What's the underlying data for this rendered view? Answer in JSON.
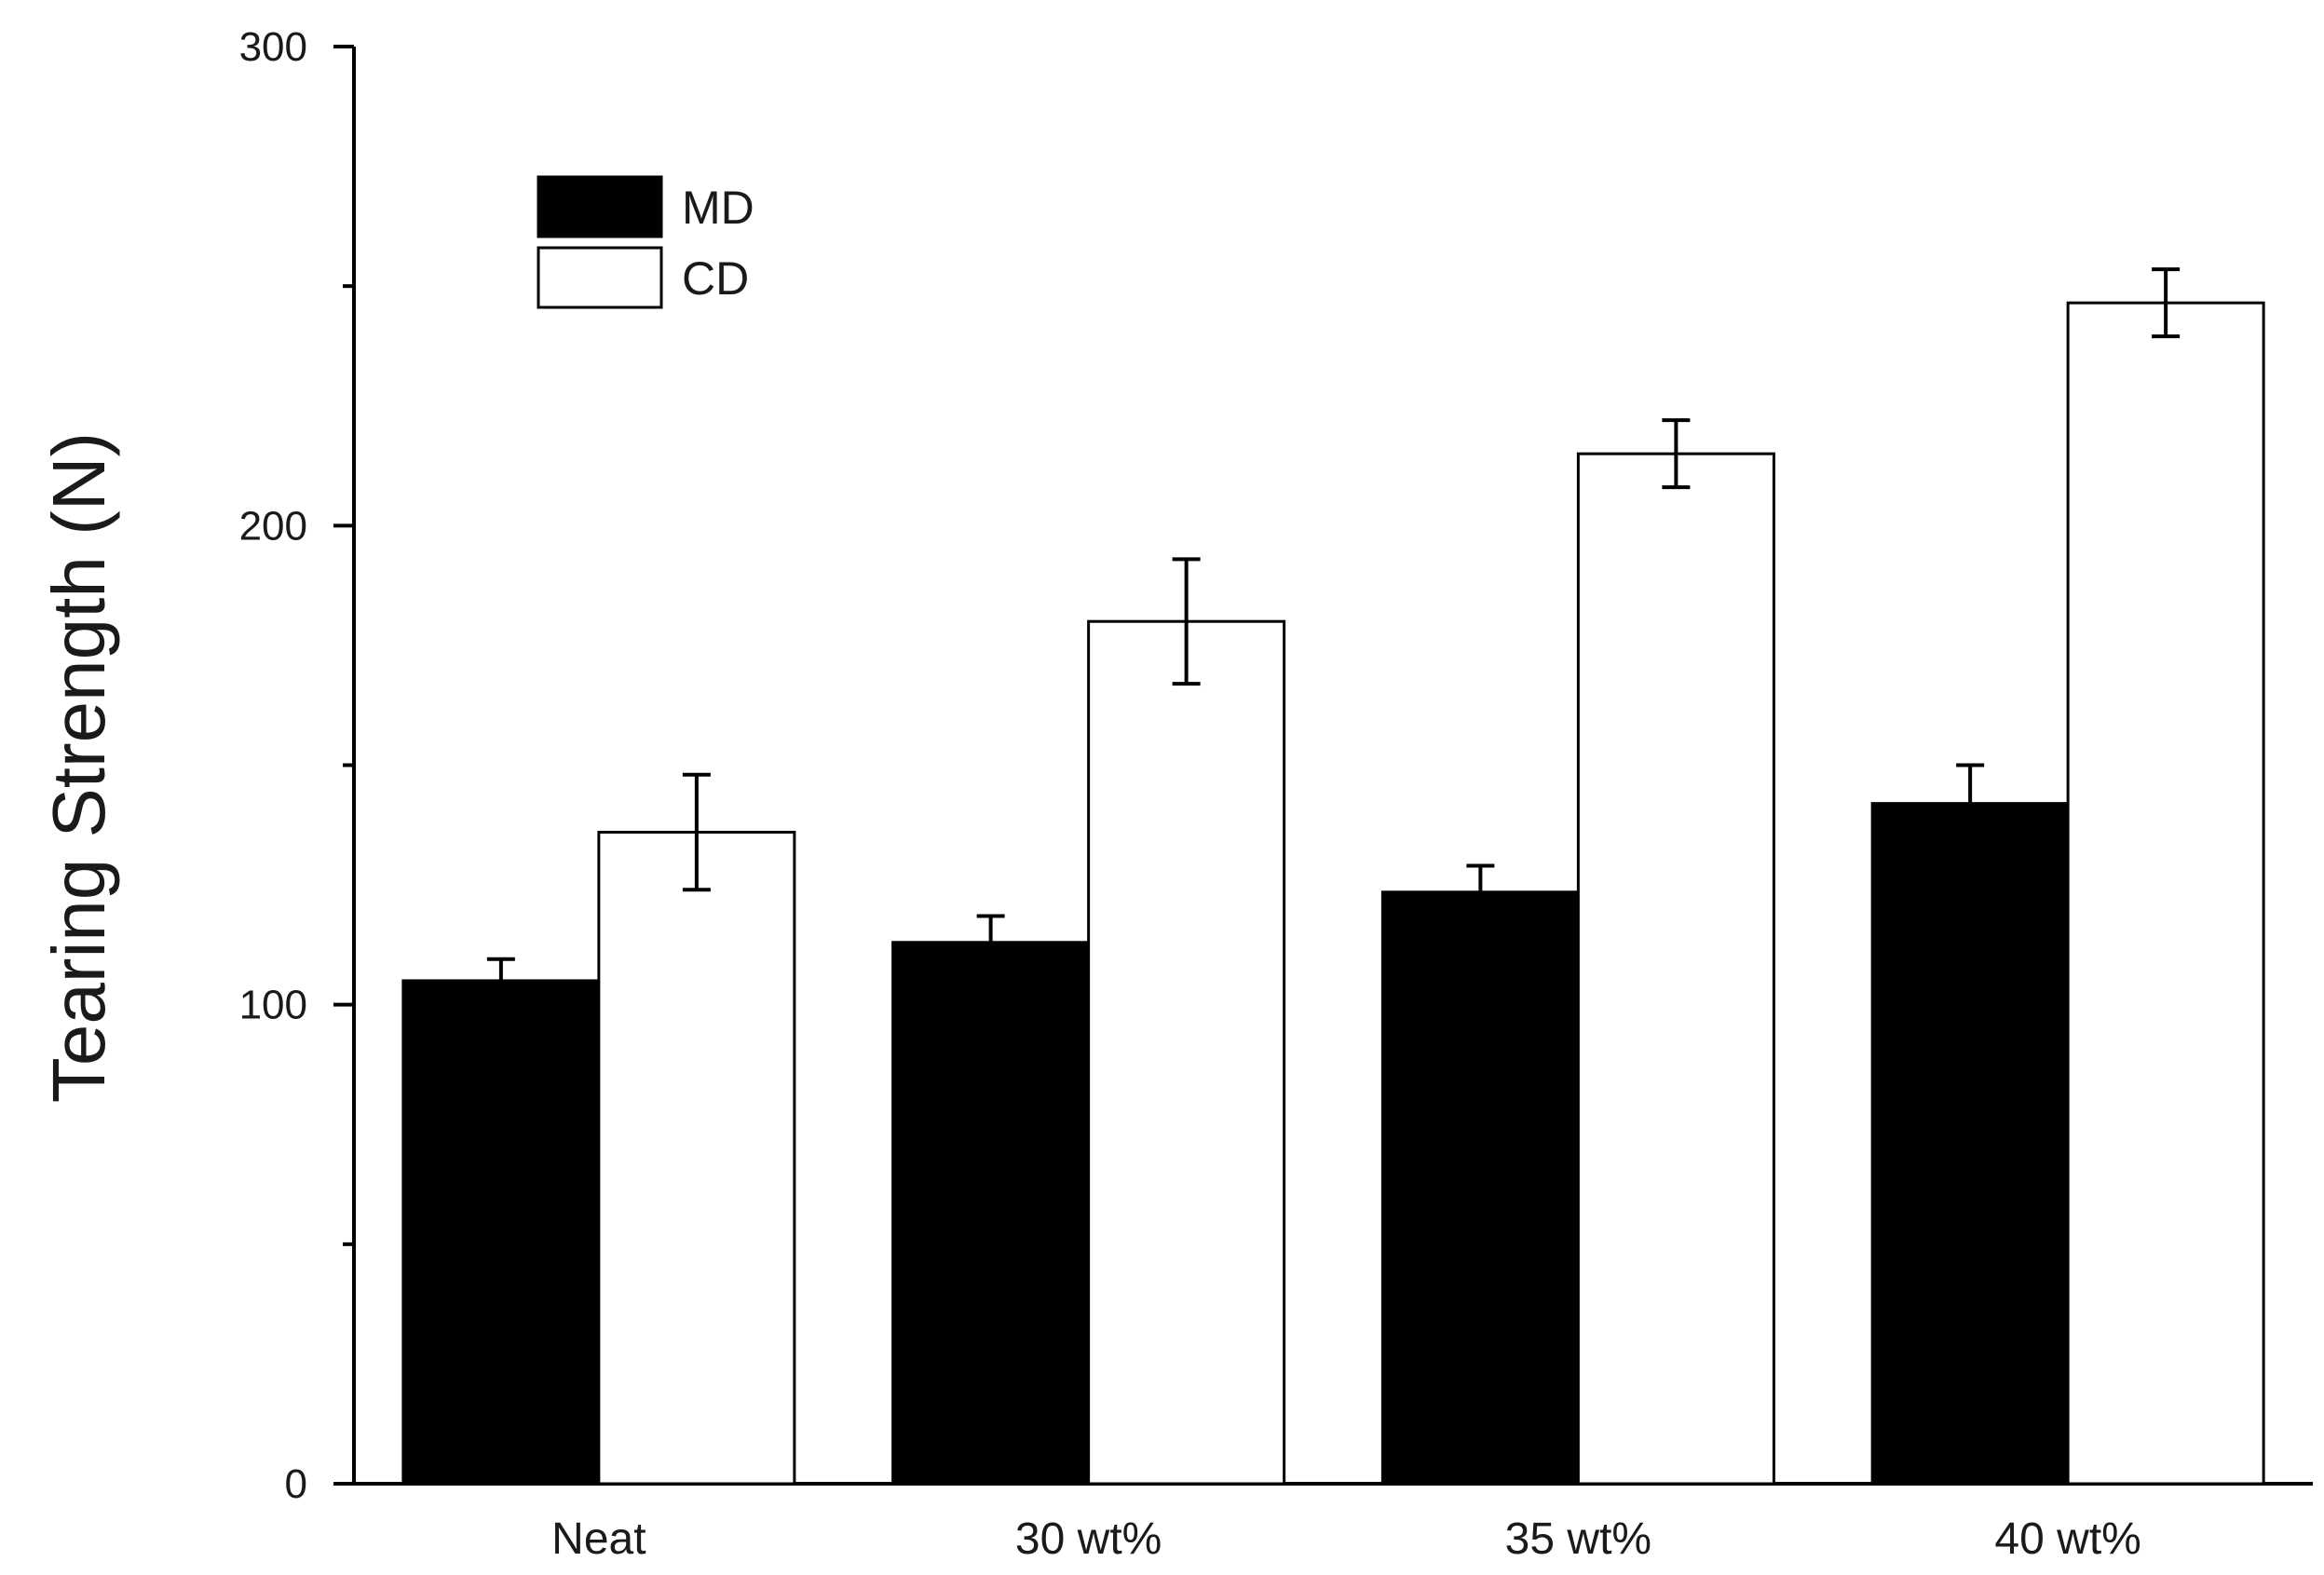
{
  "chart_data": {
    "type": "bar",
    "title": "",
    "xlabel": "",
    "ylabel": "Tearing Strength (N)",
    "ylim": [
      0,
      300
    ],
    "yticks": [
      0,
      100,
      200,
      300
    ],
    "yminor": [
      50,
      150,
      250
    ],
    "grid": false,
    "legend_position": "top-left",
    "categories": [
      "Neat",
      "30 wt%",
      "35 wt%",
      "40 wt%"
    ],
    "series": [
      {
        "name": "MD",
        "fill": "#000000",
        "values": [
          105,
          113,
          123.5,
          142
        ],
        "errors": [
          4.5,
          5.5,
          5.5,
          8
        ]
      },
      {
        "name": "CD",
        "fill": "#ffffff",
        "values": [
          136,
          180,
          215,
          246.5
        ],
        "errors": [
          12,
          13,
          7,
          7
        ]
      }
    ]
  }
}
